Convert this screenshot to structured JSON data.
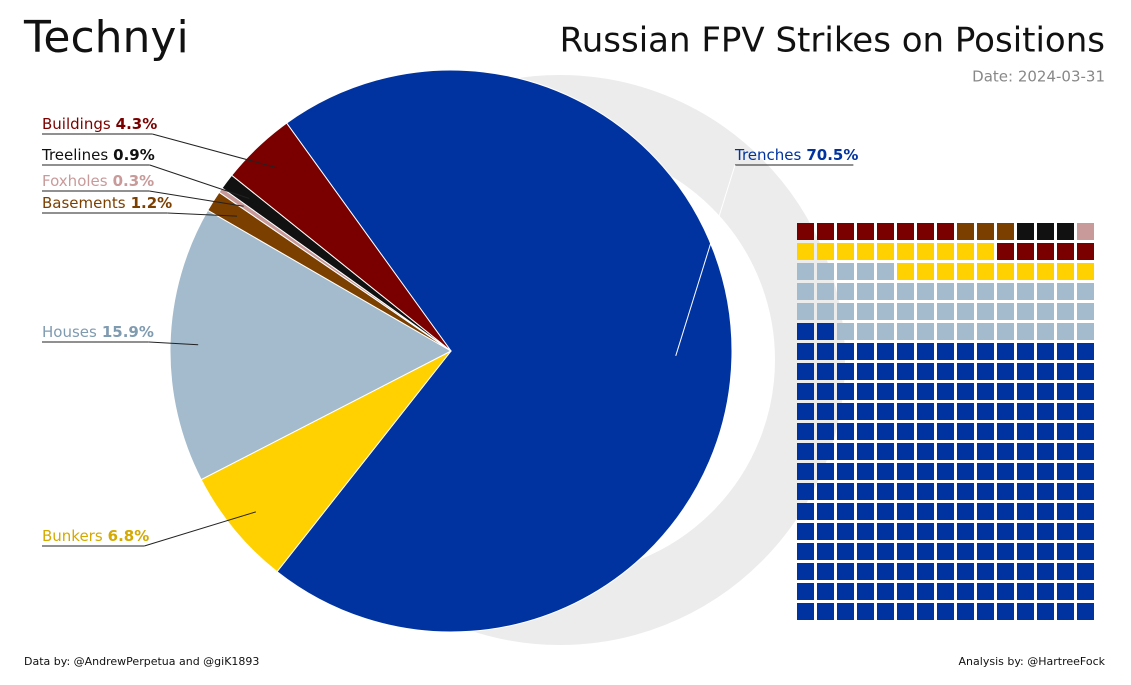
{
  "brand": "Technyi",
  "footer": {
    "source": "Data by: @AndrewPerpetua and @giK1893",
    "credit": "Analysis by: @HartreeFock"
  },
  "chart_data": {
    "type": "pie",
    "title": "Russian FPV Strikes on Positions",
    "subtitle": "Date: 2024-03-31",
    "categories": [
      "Trenches",
      "Bunkers",
      "Houses",
      "Basements",
      "Foxholes",
      "Treelines",
      "Buildings"
    ],
    "values": [
      70.5,
      6.8,
      15.9,
      1.2,
      0.3,
      0.9,
      4.3
    ],
    "value_labels": [
      "70.5%",
      "6.8%",
      "15.9%",
      "1.2%",
      "0.3%",
      "0.9%",
      "4.3%"
    ],
    "colors": [
      "#0033a0",
      "#ffd100",
      "#a3bbcc",
      "#7b3f00",
      "#c99a9a",
      "#111111",
      "#7a0000"
    ]
  }
}
